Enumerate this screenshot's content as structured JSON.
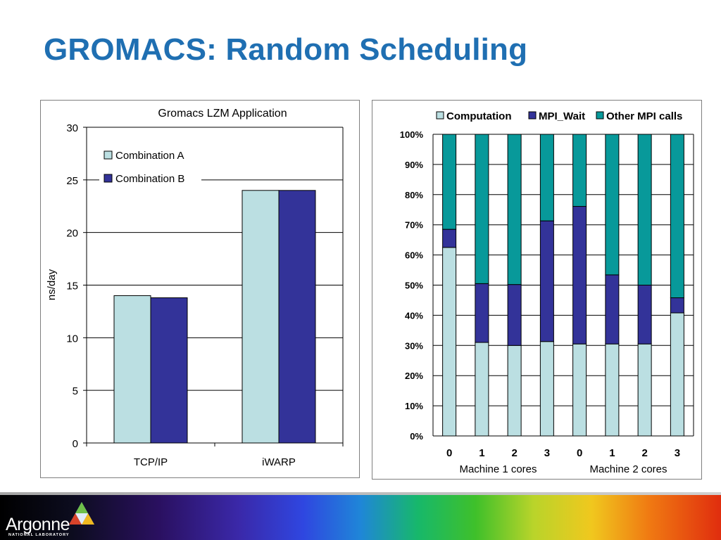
{
  "page": {
    "title": "GROMACS: Random Scheduling"
  },
  "logo": {
    "name": "Argonne",
    "subtitle": "NATIONAL LABORATORY"
  },
  "colors": {
    "title": "#1f6fb2",
    "combination_a": "#bbdfe2",
    "combination_b": "#333399",
    "computation": "#bbdfe2",
    "mpi_wait": "#333399",
    "other_mpi": "#08999a"
  },
  "chart_data": [
    {
      "type": "bar",
      "title": "Gromacs LZM Application",
      "ylabel": "ns/day",
      "xlabel": "",
      "ylim": [
        0,
        30
      ],
      "y_ticks": [
        "0",
        "5",
        "10",
        "15",
        "20",
        "25",
        "30"
      ],
      "categories": [
        "TCP/IP",
        "iWARP"
      ],
      "series": [
        {
          "name": "Combination A",
          "values": [
            14.0,
            24.0
          ]
        },
        {
          "name": "Combination B",
          "values": [
            13.8,
            24.0
          ]
        }
      ],
      "legend": "top-left",
      "grid": true
    },
    {
      "type": "bar",
      "stacked": true,
      "percent": true,
      "ylim": [
        0,
        100
      ],
      "y_ticks": [
        "0%",
        "10%",
        "20%",
        "30%",
        "40%",
        "50%",
        "60%",
        "70%",
        "80%",
        "90%",
        "100%"
      ],
      "categories": [
        "0",
        "1",
        "2",
        "3",
        "0",
        "1",
        "2",
        "3"
      ],
      "groups": [
        {
          "label": "Machine 1 cores",
          "count": 4
        },
        {
          "label": "Machine 2 cores",
          "count": 4
        }
      ],
      "series": [
        {
          "name": "Computation",
          "values": [
            62.5,
            31,
            30,
            31.3,
            30.5,
            30.5,
            30.5,
            40.8
          ]
        },
        {
          "name": "MPI_Wait",
          "values": [
            6,
            19.5,
            20.2,
            40,
            45.6,
            22.9,
            19.5,
            5
          ]
        },
        {
          "name": "Other MPI calls",
          "values": [
            31.5,
            49.5,
            49.8,
            28.7,
            23.9,
            46.6,
            50,
            54.2
          ]
        }
      ],
      "legend": "top",
      "grid": true
    }
  ]
}
